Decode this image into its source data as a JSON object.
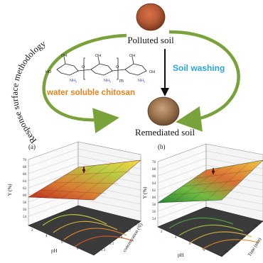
{
  "top": {
    "arc_label": "Response surface methodology",
    "polluted_label": "Polluted soil",
    "washing_label": "Soil washing",
    "remediated_label": "Remediated soil",
    "chitosan_label": "water soluble chitosan",
    "formula_subscript": "m",
    "formula_groups": {
      "oh": "OH",
      "nh2": "NH",
      "two": "2",
      "ho": "HO",
      "o": "O"
    }
  },
  "panels": [
    {
      "id": "a",
      "label": "(a)",
      "z_axis_label": "Y (%)",
      "z_ticks": [
        "70",
        "68",
        "66",
        "64",
        "62",
        "60",
        "58",
        "56",
        "54"
      ],
      "x_axis_label": "pH",
      "x_ticks": [
        "2",
        "4",
        "6",
        "8"
      ],
      "y_axis_label": "concentration (%)",
      "y_ticks": [
        "0.5",
        "0.7",
        "0.9",
        "1.1",
        "1.3"
      ]
    },
    {
      "id": "b",
      "label": "(b)",
      "z_axis_label": "Y (%)",
      "z_ticks": [
        "70",
        "68",
        "66",
        "64",
        "62",
        "60",
        "58",
        "56",
        "54"
      ],
      "x_axis_label": "pH",
      "x_ticks": [
        "2",
        "4",
        "6",
        "8"
      ],
      "y_axis_label": "Time (min)",
      "y_ticks": [
        "10",
        "30",
        "50",
        "70",
        "90"
      ]
    }
  ],
  "colors": {
    "arrow_green": "#7aa23a",
    "washing_blue": "#2aa6d8",
    "chitosan_orange": "#e8821e",
    "nh2_blue": "#3a4fc8",
    "surface_high": "#f6d53a",
    "surface_mid": "#d9782a",
    "surface_low": "#b51f10",
    "floor": "#3b3b3b"
  }
}
